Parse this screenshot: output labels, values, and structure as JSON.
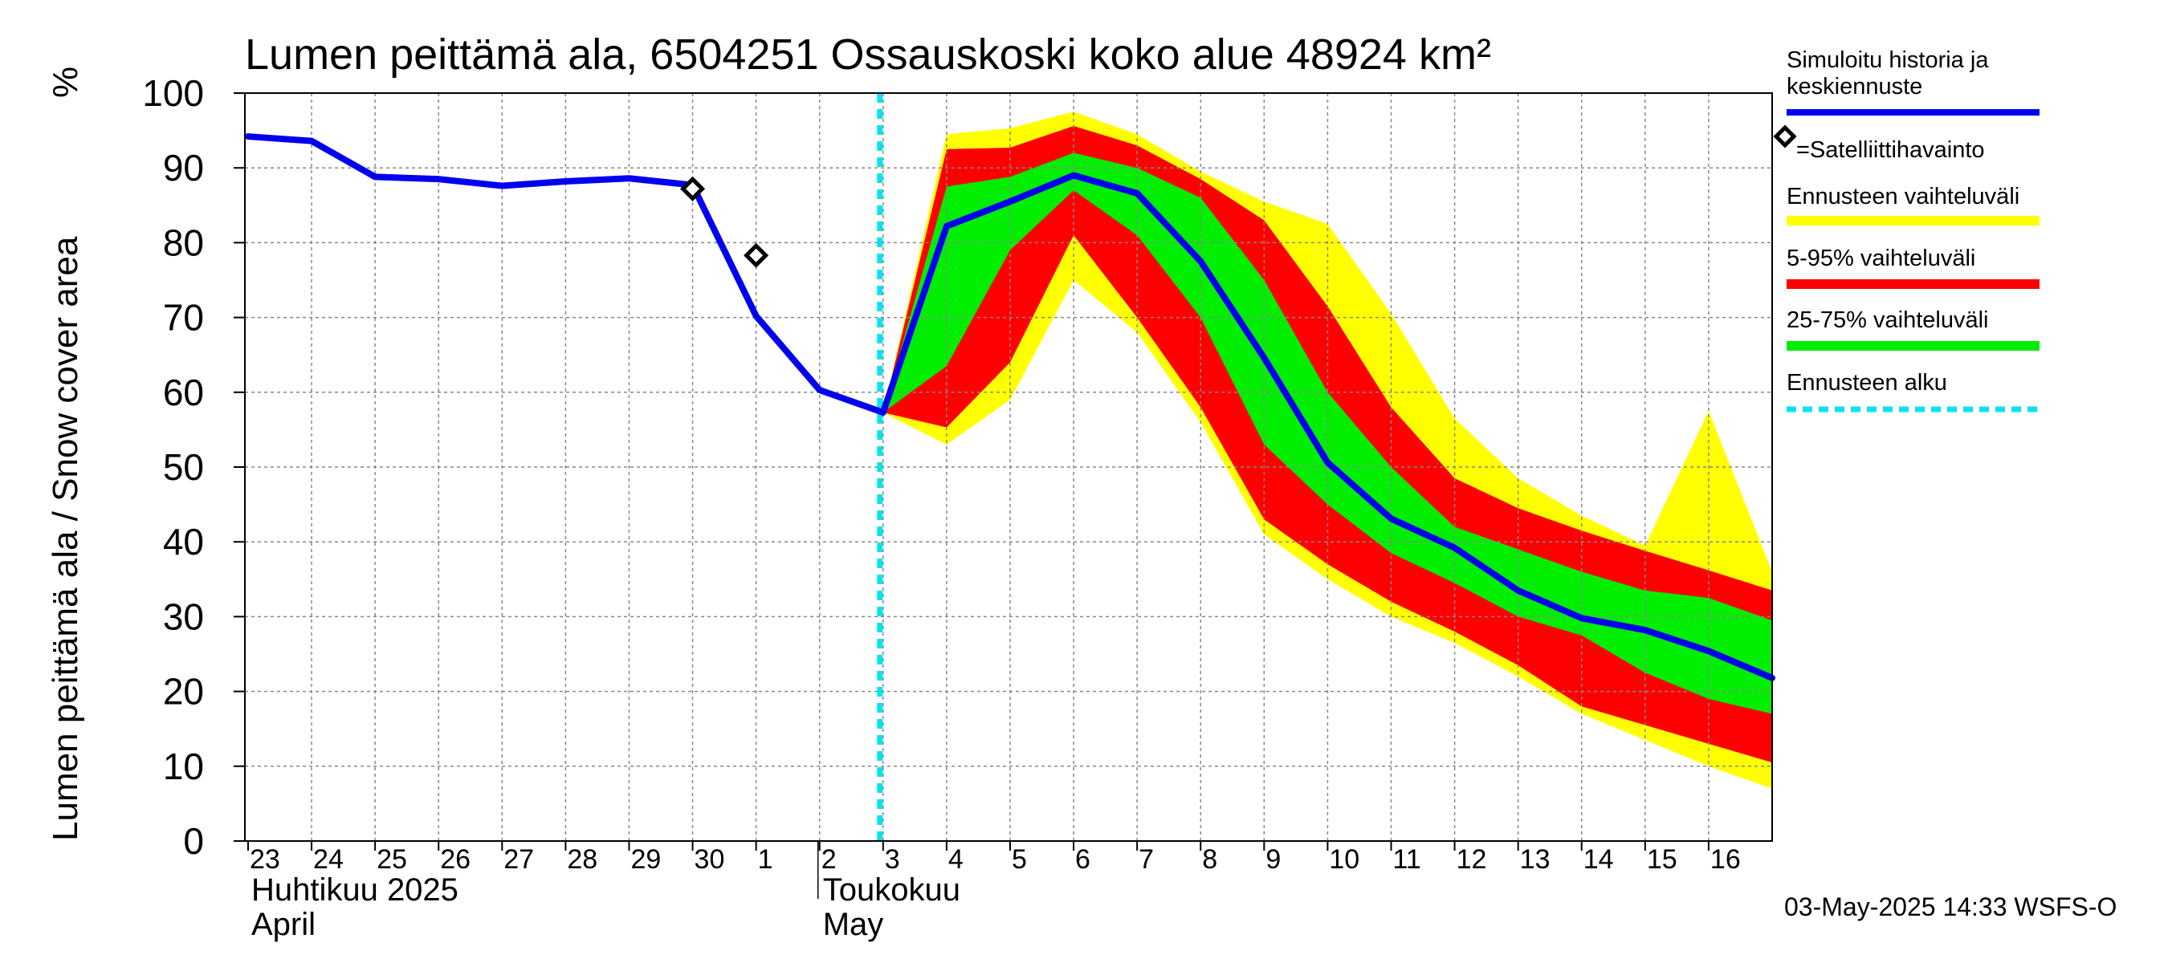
{
  "chart_data": {
    "type": "area",
    "title": "Lumen peittämä ala, 6504251 Ossauskoski koko alue 48924 km²",
    "ylabel": "Lumen peittämä ala / Snow cover area",
    "yunit": "%",
    "ylim": [
      0,
      100
    ],
    "yticks": [
      0,
      10,
      20,
      30,
      40,
      50,
      60,
      70,
      80,
      90,
      100
    ],
    "xlim": [
      -0.05,
      24.0
    ],
    "day_labels": [
      "23",
      "24",
      "25",
      "26",
      "27",
      "28",
      "29",
      "30",
      "1",
      "2",
      "3",
      "4",
      "5",
      "6",
      "7",
      "8",
      "9",
      "10",
      "11",
      "12",
      "13",
      "14",
      "15",
      "16"
    ],
    "month_labels": [
      {
        "line1": "Huhtikuu  2025",
        "line2": "April",
        "x": 0
      },
      {
        "line1": "Toukokuu",
        "line2": "May",
        "x": 9
      }
    ],
    "forecast_start_x": 10,
    "history": {
      "name": "Simuloitu historia ja keskiennuste",
      "color": "#0000ee",
      "x": [
        0,
        1,
        2,
        3,
        4,
        5,
        6,
        7,
        8,
        9,
        10
      ],
      "y": [
        94.2,
        93.6,
        88.8,
        88.5,
        87.6,
        88.2,
        88.6,
        87.7,
        70.2,
        60.3,
        57.3
      ]
    },
    "median": {
      "x": [
        10,
        11,
        12,
        13,
        14,
        15,
        16,
        17,
        18,
        19,
        20,
        21,
        22,
        23,
        24
      ],
      "y": [
        57.3,
        82.2,
        85.5,
        89.0,
        86.6,
        77.5,
        64.6,
        50.6,
        43.1,
        39.2,
        33.5,
        29.8,
        28.2,
        25.4,
        21.8
      ]
    },
    "bands": [
      {
        "name": "Ennusteen vaihteluväli",
        "color": "#ffff00",
        "x": [
          10,
          11,
          12,
          13,
          14,
          15,
          16,
          17,
          18,
          19,
          20,
          21,
          22,
          23,
          24
        ],
        "upper": [
          57.3,
          94.5,
          95.3,
          97.5,
          94.5,
          89.5,
          85.5,
          82.5,
          70.5,
          56.5,
          48.5,
          43.5,
          39.5,
          57.5,
          36.0
        ],
        "lower": [
          57.3,
          53.0,
          59.0,
          75.0,
          68.0,
          56.0,
          41.0,
          35.0,
          30.0,
          26.5,
          22.0,
          17.0,
          13.5,
          10.0,
          7.0
        ]
      },
      {
        "name": "5-95% vaihteluväli",
        "color": "#ff0000",
        "x": [
          10,
          11,
          12,
          13,
          14,
          15,
          16,
          17,
          18,
          19,
          20,
          21,
          22,
          23,
          24
        ],
        "upper": [
          57.3,
          92.5,
          92.7,
          95.6,
          93.0,
          88.5,
          83.0,
          71.5,
          58.0,
          48.5,
          44.5,
          41.5,
          38.8,
          36.2,
          33.5
        ],
        "lower": [
          57.3,
          55.3,
          64.0,
          81.0,
          70.0,
          58.0,
          43.0,
          37.0,
          32.0,
          28.0,
          23.5,
          18.0,
          15.5,
          13.0,
          10.5
        ]
      },
      {
        "name": "25-75% vaihteluväli",
        "color": "#00ee00",
        "x": [
          10,
          11,
          12,
          13,
          14,
          15,
          16,
          17,
          18,
          19,
          20,
          21,
          22,
          23,
          24
        ],
        "upper": [
          57.3,
          87.5,
          88.8,
          92.0,
          90.0,
          86.0,
          75.0,
          60.0,
          50.0,
          42.0,
          39.0,
          36.0,
          33.5,
          32.5,
          29.5
        ],
        "lower": [
          57.3,
          63.5,
          79.0,
          87.0,
          81.0,
          70.0,
          53.0,
          45.0,
          38.5,
          34.5,
          30.0,
          27.5,
          22.5,
          19.0,
          17.0
        ]
      }
    ],
    "satellite": {
      "name": "=Satelliittihavainto",
      "x": [
        7,
        8
      ],
      "y": [
        87.2,
        78.3
      ]
    },
    "forecast_start_label": "Ennusteen alku",
    "timestamp": "03-May-2025 14:33 WSFS-O",
    "colors": {
      "forecast_line": "#00e5ee",
      "grid": "#888888",
      "satellite_marker": "#000000"
    }
  }
}
